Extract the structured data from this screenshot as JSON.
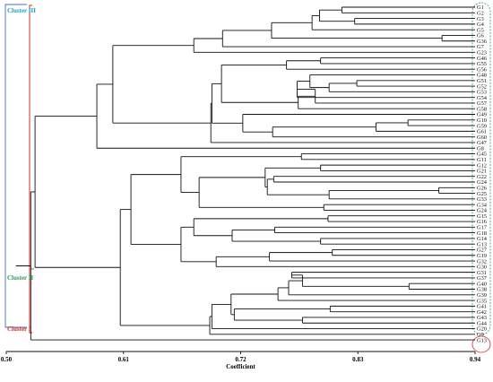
{
  "x_axis": {
    "title": "Coefficient",
    "ticks": [
      {
        "value": 0.5,
        "label": "0.50"
      },
      {
        "value": 0.61,
        "label": "0.61"
      },
      {
        "value": 0.72,
        "label": "0.72"
      },
      {
        "value": 0.83,
        "label": "0.83"
      },
      {
        "value": 0.94,
        "label": "0.94"
      }
    ],
    "range": [
      0.5,
      0.94
    ]
  },
  "clusters": [
    {
      "label": "Cluster III",
      "color": "#1aa3c7"
    },
    {
      "label": "Cluster II",
      "color": "#2e9a57"
    },
    {
      "label": "Cluster I",
      "color": "#d62b2b"
    }
  ],
  "colors": {
    "tree": "#111111",
    "cluster_iii_bracket": "#4a6fb5",
    "cluster_i_bracket": "#d62b2b",
    "leaf_bracket": "#2e9a57",
    "cluster_i_ellipse": "#d62b2b"
  },
  "leaves": [
    "G1",
    "G2",
    "G3",
    "G4",
    "G5",
    "G6",
    "G36",
    "G7",
    "G23",
    "G46",
    "G55",
    "G56",
    "G48",
    "G51",
    "G52",
    "G53",
    "G54",
    "G57",
    "G58",
    "G49",
    "G10",
    "G59",
    "G61",
    "G60",
    "G47",
    "G8",
    "G45",
    "G11",
    "G12",
    "G21",
    "G22",
    "G24",
    "G26",
    "G25",
    "G33",
    "G34",
    "G24",
    "G15",
    "G16",
    "G17",
    "G18",
    "G14",
    "G13",
    "G27",
    "G19",
    "G32",
    "G30",
    "G31",
    "G37",
    "G40",
    "G38",
    "G39",
    "G35",
    "G41",
    "G42",
    "G43",
    "G44",
    "G20",
    "G9",
    "G13"
  ],
  "merges": [
    {
      "a": 0,
      "b": 1,
      "h": 0.815
    },
    {
      "a": 2,
      "b": 3,
      "h": 0.827
    },
    {
      "a": 1000,
      "b": 1001,
      "h": 0.794
    },
    {
      "a": 4,
      "b": 1002,
      "h": 0.787
    },
    {
      "a": 5,
      "b": 6,
      "h": 0.909
    },
    {
      "a": 1003,
      "b": 1004,
      "h": 0.749
    },
    {
      "a": 1005,
      "b": 7,
      "h": 0.703
    },
    {
      "a": 1006,
      "b": 8,
      "h": 0.676
    },
    {
      "a": 9,
      "b": 10,
      "h": 0.795
    },
    {
      "a": 13,
      "b": 14,
      "h": 0.829
    },
    {
      "a": 1009,
      "b": 15,
      "h": 0.803
    },
    {
      "a": 12,
      "b": 1010,
      "h": 0.785
    },
    {
      "a": 1011,
      "b": 16,
      "h": 0.773
    },
    {
      "a": 1012,
      "b": 17,
      "h": 0.79
    },
    {
      "a": 1013,
      "b": 18,
      "h": 0.774
    },
    {
      "a": 1008,
      "b": 11,
      "h": 0.763
    },
    {
      "a": 1015,
      "b": 1014,
      "h": 0.702
    },
    {
      "a": 20,
      "b": 21,
      "h": 0.877
    },
    {
      "a": 1017,
      "b": 22,
      "h": 0.847
    },
    {
      "a": 1018,
      "b": 23,
      "h": 0.75
    },
    {
      "a": 19,
      "b": 1019,
      "h": 0.722
    },
    {
      "a": 1016,
      "b": 1020,
      "h": 0.693
    },
    {
      "a": 1021,
      "b": 24,
      "h": 0.692
    },
    {
      "a": 1007,
      "b": 1022,
      "h": 0.6
    },
    {
      "a": 1023,
      "b": 25,
      "h": 0.585
    },
    {
      "a": 26,
      "b": 27,
      "h": 0.777
    },
    {
      "a": 28,
      "b": 29,
      "h": 0.795
    },
    {
      "a": 30,
      "b": 31,
      "h": 0.751
    },
    {
      "a": 32,
      "b": 33,
      "h": 0.906
    },
    {
      "a": 34,
      "b": 1028,
      "h": 0.803
    },
    {
      "a": 1027,
      "b": 1029,
      "h": 0.745
    },
    {
      "a": 1026,
      "b": 1030,
      "h": 0.743
    },
    {
      "a": 35,
      "b": 36,
      "h": 0.798
    },
    {
      "a": 1031,
      "b": 1032,
      "h": 0.681
    },
    {
      "a": 1025,
      "b": 1033,
      "h": 0.664
    },
    {
      "a": 37,
      "b": 38,
      "h": 0.802
    },
    {
      "a": 39,
      "b": 40,
      "h": 0.752
    },
    {
      "a": 41,
      "b": 42,
      "h": 0.795
    },
    {
      "a": 1036,
      "b": 1037,
      "h": 0.712
    },
    {
      "a": 1035,
      "b": 1038,
      "h": 0.676
    },
    {
      "a": 43,
      "b": 44,
      "h": 0.806
    },
    {
      "a": 1040,
      "b": 45,
      "h": 0.747
    },
    {
      "a": 1041,
      "b": 46,
      "h": 0.697
    },
    {
      "a": 1039,
      "b": 1042,
      "h": 0.664
    },
    {
      "a": 1034,
      "b": 1043,
      "h": 0.617
    },
    {
      "a": 47,
      "b": 48,
      "h": 0.768
    },
    {
      "a": 49,
      "b": 50,
      "h": 0.878
    },
    {
      "a": 1045,
      "b": 1046,
      "h": 0.778
    },
    {
      "a": 1047,
      "b": 51,
      "h": 0.765
    },
    {
      "a": 1048,
      "b": 52,
      "h": 0.755
    },
    {
      "a": 53,
      "b": 54,
      "h": 0.804
    },
    {
      "a": 55,
      "b": 56,
      "h": 0.778
    },
    {
      "a": 1050,
      "b": 1051,
      "h": 0.714
    },
    {
      "a": 1049,
      "b": 1052,
      "h": 0.711
    },
    {
      "a": 1053,
      "b": 57,
      "h": 0.693
    },
    {
      "a": 1054,
      "b": 58,
      "h": 0.691
    },
    {
      "a": 1044,
      "b": 1055,
      "h": 0.607
    },
    {
      "a": 1024,
      "b": 1056,
      "h": 0.527
    },
    {
      "a": 1057,
      "b": 59,
      "h": 0.523
    }
  ]
}
